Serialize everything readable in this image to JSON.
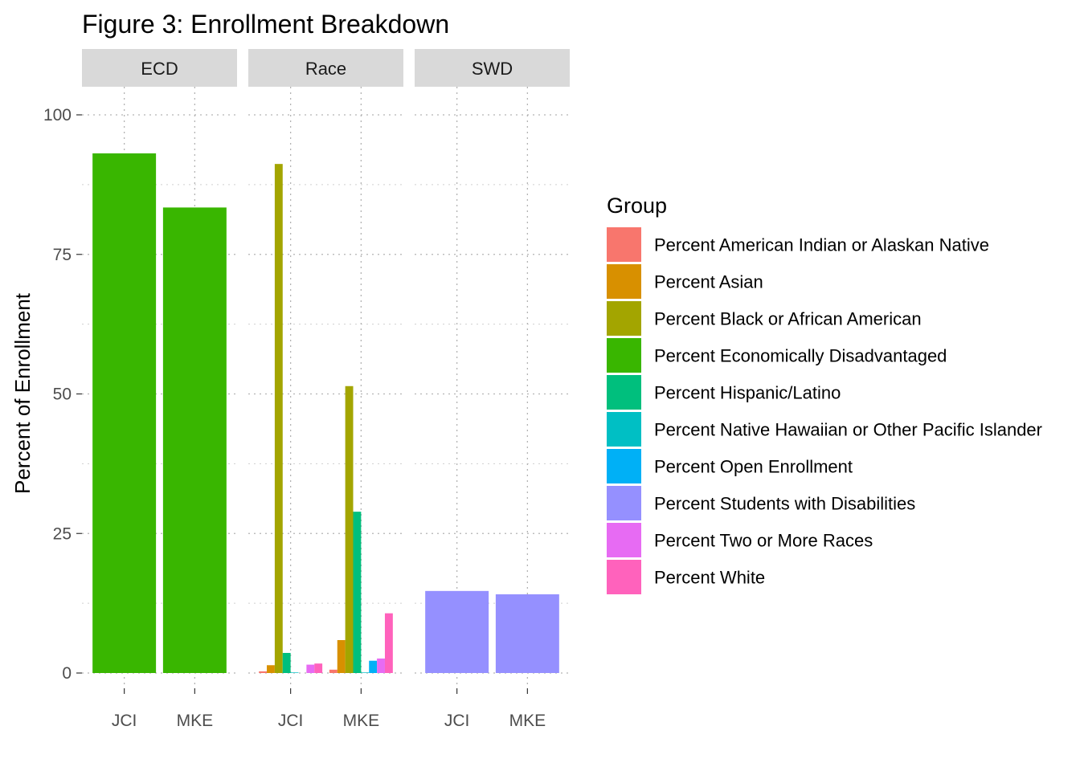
{
  "chart_data": {
    "type": "bar",
    "title": "Figure 3: Enrollment Breakdown",
    "ylabel": "Percent of Enrollment",
    "xlabel": "",
    "ylim": [
      0,
      100
    ],
    "yticks": [
      0,
      25,
      50,
      75,
      100
    ],
    "grid": true,
    "legend": {
      "title": "Group",
      "placement": "right",
      "entries": [
        {
          "name": "Percent American Indian or Alaskan Native",
          "color": "#F8766D"
        },
        {
          "name": "Percent Asian",
          "color": "#D89000"
        },
        {
          "name": "Percent Black or African American",
          "color": "#A3A500"
        },
        {
          "name": "Percent Economically Disadvantaged",
          "color": "#39B600"
        },
        {
          "name": "Percent Hispanic/Latino",
          "color": "#00BF7D"
        },
        {
          "name": "Percent Native Hawaiian or Other Pacific Islander",
          "color": "#00BFC4"
        },
        {
          "name": "Percent Open Enrollment",
          "color": "#00B0F6"
        },
        {
          "name": "Percent Students with Disabilities",
          "color": "#9590FF"
        },
        {
          "name": "Percent Two or More Races",
          "color": "#E76BF3"
        },
        {
          "name": "Percent White",
          "color": "#FF62BC"
        }
      ]
    },
    "facets": [
      {
        "label": "ECD",
        "categories": [
          "JCI",
          "MKE"
        ],
        "groups": [
          "Percent Economically Disadvantaged"
        ],
        "series": [
          {
            "name": "Percent Economically Disadvantaged",
            "values": [
              93.1,
              83.4
            ]
          }
        ]
      },
      {
        "label": "Race",
        "categories": [
          "JCI",
          "MKE"
        ],
        "groups": [
          "Percent American Indian or Alaskan Native",
          "Percent Asian",
          "Percent Black or African American",
          "Percent Hispanic/Latino",
          "Percent Native Hawaiian or Other Pacific Islander",
          "Percent Open Enrollment",
          "Percent Two or More Races",
          "Percent White"
        ],
        "series": [
          {
            "name": "Percent American Indian or Alaskan Native",
            "values": [
              0.3,
              0.6
            ]
          },
          {
            "name": "Percent Asian",
            "values": [
              1.4,
              5.9
            ]
          },
          {
            "name": "Percent Black or African American",
            "values": [
              91.2,
              51.4
            ]
          },
          {
            "name": "Percent Hispanic/Latino",
            "values": [
              3.6,
              28.9
            ]
          },
          {
            "name": "Percent Native Hawaiian or Other Pacific Islander",
            "values": [
              0.1,
              0.1
            ]
          },
          {
            "name": "Percent Open Enrollment",
            "values": [
              0.0,
              2.2
            ]
          },
          {
            "name": "Percent Two or More Races",
            "values": [
              1.5,
              2.6
            ]
          },
          {
            "name": "Percent White",
            "values": [
              1.7,
              10.7
            ]
          }
        ]
      },
      {
        "label": "SWD",
        "categories": [
          "JCI",
          "MKE"
        ],
        "groups": [
          "Percent Students with Disabilities"
        ],
        "series": [
          {
            "name": "Percent Students with Disabilities",
            "values": [
              14.7,
              14.1
            ]
          }
        ]
      }
    ]
  }
}
